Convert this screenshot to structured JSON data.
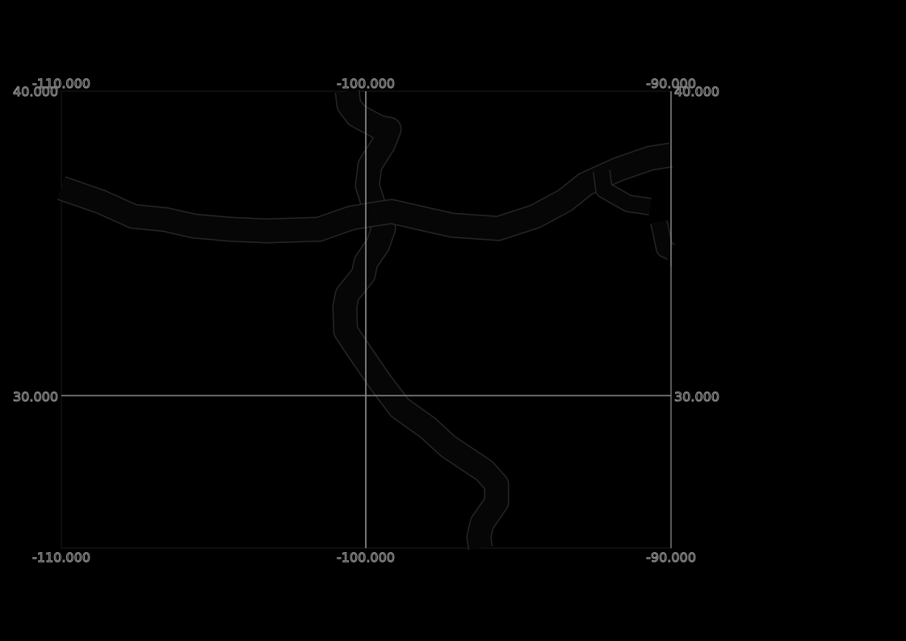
{
  "map": {
    "graticule": {
      "lon_labels": [
        "-110.000",
        "-100.000",
        "-90.000"
      ],
      "lat_labels": [
        "40.000",
        "30.000"
      ]
    },
    "colors": {
      "background": "#000000",
      "grid_line": "#888888",
      "river": "#060606",
      "river_outline": "#262626",
      "tick_label_outline": "#9a9a9a"
    }
  }
}
